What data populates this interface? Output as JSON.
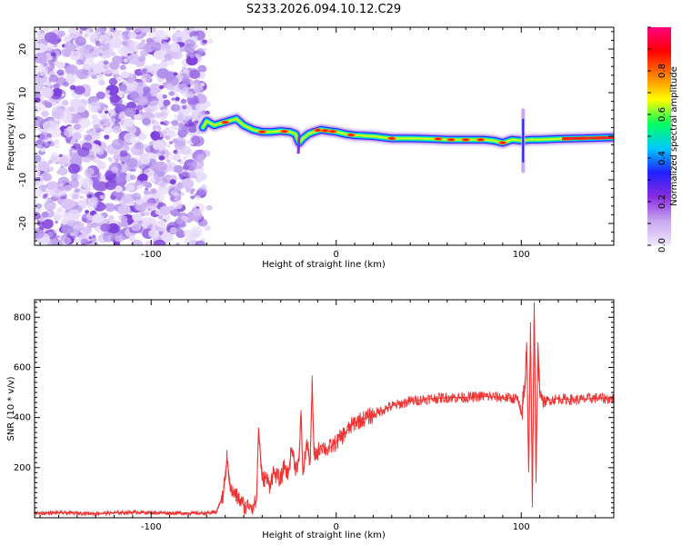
{
  "page_title": "S233.2026.094.10.12.C29",
  "chart_data": [
    {
      "type": "heatmap",
      "title": "S233.2026.094.10.12.C29",
      "xlabel": "Height of straight line (km)",
      "ylabel": "Frequency (Hz)",
      "xlim": [
        -163,
        150
      ],
      "ylim": [
        -25,
        25
      ],
      "xticks": [
        -100,
        0,
        100
      ],
      "yticks": [
        -20,
        -10,
        0,
        10,
        20
      ],
      "noise_region_x": [
        -163,
        -72
      ],
      "ridge": {
        "x": [
          -72,
          -70,
          -66,
          -62,
          -58,
          -54,
          -50,
          -45,
          -40,
          -35,
          -30,
          -25,
          -22,
          -20,
          -18,
          -15,
          -12,
          -8,
          -4,
          0,
          5,
          10,
          20,
          30,
          40,
          50,
          60,
          70,
          80,
          85,
          90,
          95,
          100,
          105,
          110,
          120,
          130,
          140,
          150
        ],
        "y": [
          2.0,
          3.5,
          2.5,
          3.0,
          3.5,
          4.0,
          2.5,
          1.5,
          1.0,
          1.0,
          1.2,
          1.0,
          0.5,
          -1.5,
          -0.5,
          0.5,
          1.0,
          1.5,
          1.2,
          1.0,
          0.5,
          0.2,
          0.0,
          -0.5,
          -0.5,
          -0.6,
          -0.8,
          -0.8,
          -0.8,
          -1.0,
          -1.5,
          -0.8,
          -1.0,
          -0.8,
          -0.8,
          -0.6,
          -0.5,
          -0.4,
          -0.3
        ]
      },
      "colorbar": {
        "label": "Normalized spectral amplitude",
        "ticks": [
          0.0,
          0.2,
          0.4,
          0.6,
          0.8
        ],
        "range": [
          0,
          1
        ],
        "colors": [
          "#f0e6ff",
          "#c8a8f0",
          "#8a2be2",
          "#2020ff",
          "#00c8ff",
          "#00ff60",
          "#ffff00",
          "#ff8000",
          "#ff0000",
          "#ff0080"
        ]
      }
    },
    {
      "type": "line",
      "title": "",
      "xlabel": "Height of straight line (km)",
      "ylabel": "SNR (10 * v/v)",
      "xlim": [
        -163,
        150
      ],
      "ylim": [
        0,
        870
      ],
      "xticks": [
        -100,
        0,
        100
      ],
      "yticks": [
        200,
        400,
        600,
        800
      ],
      "line_color": "#ee3333",
      "series": [
        {
          "name": "SNR",
          "x": [
            -163,
            -150,
            -130,
            -110,
            -90,
            -75,
            -65,
            -61,
            -60,
            -59,
            -57,
            -55,
            -52,
            -49,
            -47,
            -45,
            -43,
            -42,
            -40,
            -38,
            -36,
            -34,
            -30,
            -28,
            -26,
            -24,
            -22,
            -20,
            -19,
            -18,
            -16,
            -14,
            -13,
            -12,
            -10,
            -8,
            -5,
            0,
            5,
            10,
            15,
            20,
            25,
            30,
            40,
            50,
            60,
            70,
            80,
            90,
            98,
            100,
            102,
            103,
            104,
            105,
            106,
            107,
            108,
            109,
            110,
            112,
            115,
            120,
            130,
            140,
            150
          ],
          "values": [
            18,
            20,
            17,
            22,
            19,
            18,
            20,
            90,
            170,
            240,
            110,
            95,
            70,
            40,
            55,
            45,
            70,
            360,
            150,
            160,
            130,
            180,
            150,
            210,
            170,
            280,
            200,
            230,
            430,
            170,
            300,
            220,
            545,
            250,
            260,
            290,
            270,
            300,
            340,
            380,
            395,
            410,
            430,
            445,
            465,
            475,
            480,
            480,
            485,
            480,
            475,
            410,
            520,
            700,
            180,
            780,
            60,
            860,
            140,
            700,
            500,
            460,
            470,
            475,
            470,
            478,
            475
          ]
        }
      ]
    }
  ]
}
